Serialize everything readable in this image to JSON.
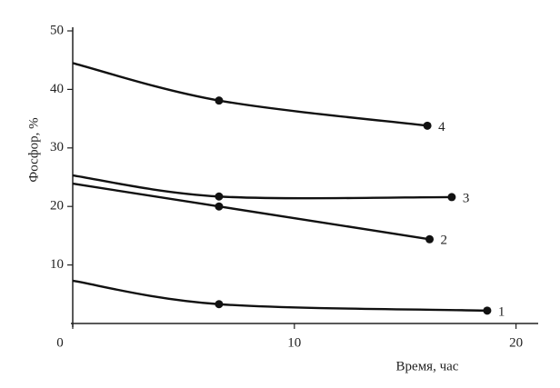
{
  "chart_data": {
    "type": "line",
    "x_label": "Время, час",
    "y_label": "Фосфор, %",
    "xlim": [
      0,
      21
    ],
    "ylim": [
      0,
      50
    ],
    "xticks": [
      0,
      10,
      20
    ],
    "yticks": [
      10,
      20,
      30,
      40,
      50
    ],
    "series": [
      {
        "name": "1",
        "color": "#111111",
        "x": [
          0,
          6.6,
          18.7
        ],
        "values": [
          7.3,
          3.3,
          2.2
        ]
      },
      {
        "name": "2",
        "color": "#111111",
        "x": [
          0,
          6.6,
          16.1
        ],
        "values": [
          23.9,
          20.0,
          14.4
        ]
      },
      {
        "name": "3",
        "color": "#111111",
        "x": [
          0,
          6.6,
          17.1
        ],
        "values": [
          25.3,
          21.7,
          21.6
        ]
      },
      {
        "name": "4",
        "color": "#111111",
        "x": [
          0,
          6.6,
          16.0
        ],
        "values": [
          44.5,
          38.1,
          33.8
        ]
      }
    ]
  }
}
